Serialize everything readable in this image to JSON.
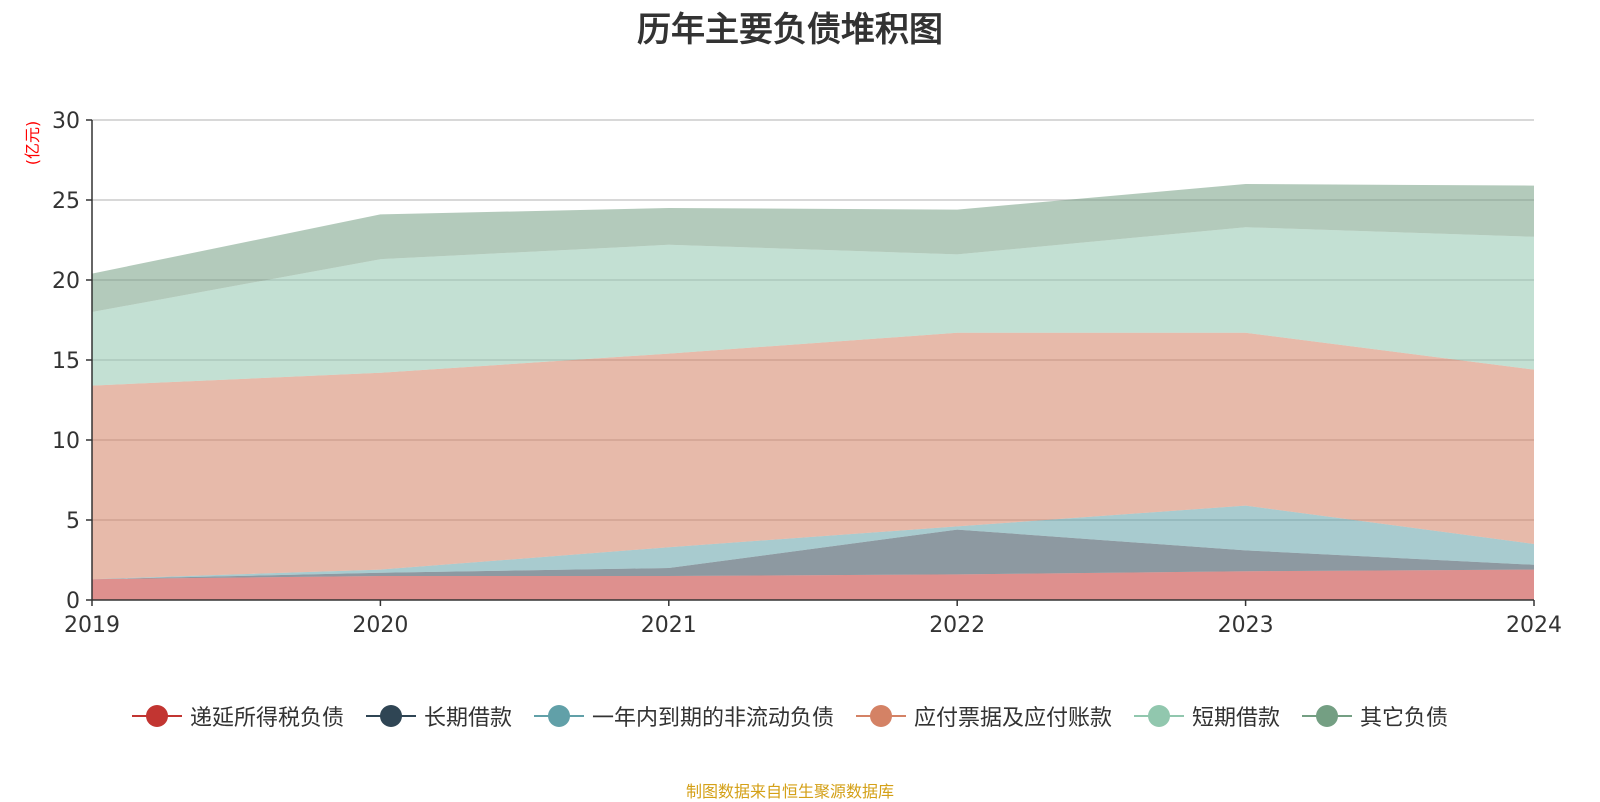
{
  "chart_data": {
    "type": "area",
    "stacked": true,
    "title": "历年主要负债堆积图",
    "unit_label": "(亿元)",
    "x": [
      "2019",
      "2020",
      "2021",
      "2022",
      "2023",
      "2024"
    ],
    "ylim": [
      0,
      30
    ],
    "yticks": [
      0,
      5,
      10,
      15,
      20,
      25,
      30
    ],
    "grid": true,
    "legend_position": "bottom",
    "series": [
      {
        "name": "递延所得税负债",
        "color": "#c23531",
        "values": [
          1.3,
          1.5,
          1.5,
          1.6,
          1.8,
          1.9
        ]
      },
      {
        "name": "长期借款",
        "color": "#2f4554",
        "values": [
          0.0,
          0.2,
          0.5,
          2.8,
          1.3,
          0.3
        ]
      },
      {
        "name": "一年内到期的非流动负债",
        "color": "#61a0a8",
        "values": [
          0.0,
          0.2,
          1.3,
          0.2,
          2.8,
          1.3
        ]
      },
      {
        "name": "应付票据及应付账款",
        "color": "#d48265",
        "values": [
          12.1,
          12.3,
          12.1,
          12.1,
          10.8,
          10.9
        ]
      },
      {
        "name": "短期借款",
        "color": "#91c7ae",
        "values": [
          4.6,
          7.1,
          6.8,
          4.9,
          6.6,
          8.3
        ]
      },
      {
        "name": "其它负债",
        "color": "#749f83",
        "values": [
          2.4,
          2.8,
          2.3,
          2.8,
          2.7,
          3.2
        ]
      }
    ]
  },
  "footer": {
    "source": "制图数据来自恒生聚源数据库"
  }
}
